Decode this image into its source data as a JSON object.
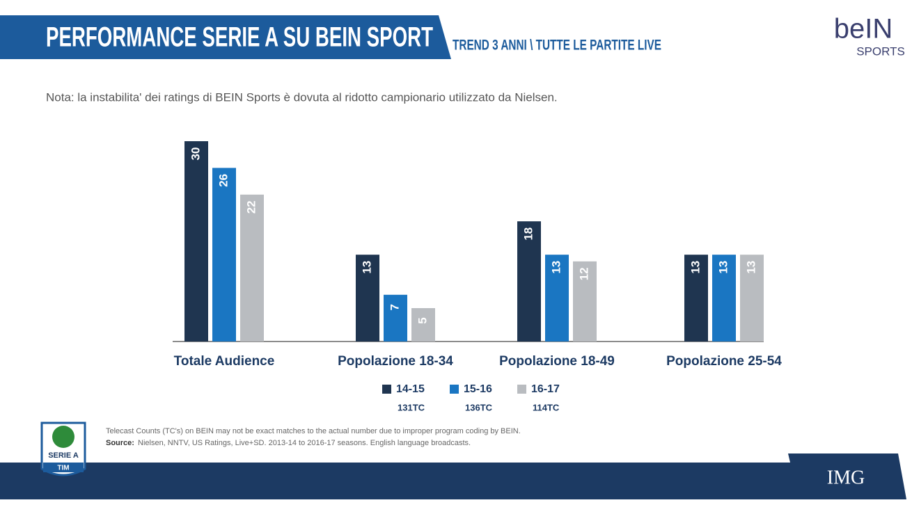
{
  "header": {
    "title": "PERFORMANCE SERIE A SU BEIN SPORT",
    "subtitle": "TREND 3 ANNI \\ TUTTE LE PARTITE LIVE"
  },
  "logos": {
    "bein": "beIN",
    "bein_sub": "SPORTS",
    "serie_a": "SERIE A",
    "tim": "TIM",
    "img": "IMG"
  },
  "note": "Nota: la instabilita' dei ratings di BEIN Sports è dovuta al ridotto campionario utilizzato da Nielsen.",
  "footnote": {
    "line1": "Telecast Counts (TC's) on BEIN may not be exact matches to the actual number due to improper program coding by BEIN.",
    "source_label": "Source:",
    "source_text": "Nielsen, NNTV, US Ratings, Live+SD. 2013-14 to 2016-17 seasons. English language broadcasts."
  },
  "chart_data": {
    "type": "bar",
    "categories": [
      "Totale Audience",
      "Popolazione 18-34",
      "Popolazione 18-49",
      "Popolazione 25-54"
    ],
    "series": [
      {
        "name": "14-15",
        "telecasts": "131TC",
        "color": "#1f3550",
        "values": [
          30,
          13,
          18,
          13
        ]
      },
      {
        "name": "15-16",
        "telecasts": "136TC",
        "color": "#1a76c2",
        "values": [
          26,
          7,
          13,
          13
        ]
      },
      {
        "name": "16-17",
        "telecasts": "114TC",
        "color": "#b9bcc0",
        "values": [
          22,
          5,
          12,
          13
        ]
      }
    ]
  }
}
